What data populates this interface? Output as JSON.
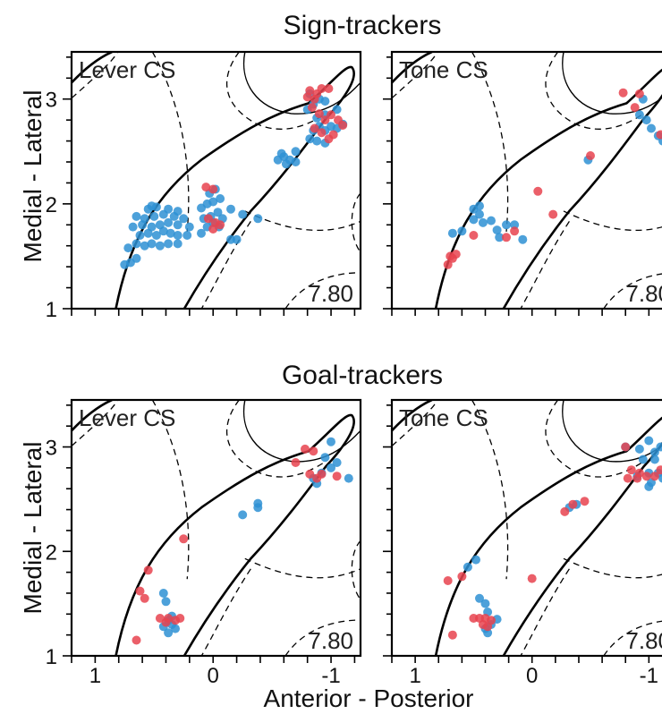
{
  "colors": {
    "blue": "#2E90D4",
    "red": "#E8434F"
  },
  "rows": [
    {
      "title": "Sign-trackers"
    },
    {
      "title": "Goal-trackers"
    }
  ],
  "ylabel": "Medial - Lateral",
  "xlabel": "Anterior - Posterior",
  "y_ticks": [
    "1",
    "2",
    "3"
  ],
  "x_ticks": [
    "1",
    "0",
    "-1"
  ],
  "chart_data": [
    {
      "type": "scatter",
      "title": "Sign-trackers",
      "panel": "Lever CS",
      "coordinate": "7.80",
      "xlim": [
        1.2,
        -1.25
      ],
      "ylim": [
        1,
        3.45
      ],
      "series": [
        {
          "color": "#2E90D4",
          "points": [
            [
              0.75,
              1.42
            ],
            [
              0.7,
              1.44
            ],
            [
              0.65,
              1.48
            ],
            [
              0.72,
              1.58
            ],
            [
              0.65,
              1.62
            ],
            [
              0.58,
              1.6
            ],
            [
              0.52,
              1.62
            ],
            [
              0.45,
              1.6
            ],
            [
              0.38,
              1.62
            ],
            [
              0.3,
              1.62
            ],
            [
              0.62,
              1.7
            ],
            [
              0.55,
              1.72
            ],
            [
              0.48,
              1.7
            ],
            [
              0.42,
              1.74
            ],
            [
              0.36,
              1.72
            ],
            [
              0.3,
              1.7
            ],
            [
              0.22,
              1.7
            ],
            [
              0.68,
              1.78
            ],
            [
              0.6,
              1.8
            ],
            [
              0.52,
              1.78
            ],
            [
              0.45,
              1.8
            ],
            [
              0.38,
              1.82
            ],
            [
              0.3,
              1.8
            ],
            [
              0.2,
              1.78
            ],
            [
              0.65,
              1.88
            ],
            [
              0.58,
              1.86
            ],
            [
              0.5,
              1.88
            ],
            [
              0.42,
              1.9
            ],
            [
              0.33,
              1.88
            ],
            [
              0.25,
              1.86
            ],
            [
              0.55,
              1.95
            ],
            [
              0.48,
              1.97
            ],
            [
              0.38,
              1.95
            ],
            [
              0.3,
              1.93
            ],
            [
              0.52,
              1.98
            ],
            [
              0.1,
              1.72
            ],
            [
              0.05,
              1.78
            ],
            [
              0.0,
              1.82
            ],
            [
              -0.05,
              1.78
            ],
            [
              0.08,
              1.86
            ],
            [
              0.02,
              1.88
            ],
            [
              -0.04,
              1.92
            ],
            [
              0.1,
              1.96
            ],
            [
              0.05,
              2.0
            ],
            [
              0.0,
              2.02
            ],
            [
              -0.06,
              2.05
            ],
            [
              0.03,
              2.1
            ],
            [
              -0.02,
              2.14
            ],
            [
              -0.08,
              1.86
            ],
            [
              -0.15,
              1.95
            ],
            [
              -0.2,
              1.66
            ],
            [
              -0.15,
              1.66
            ],
            [
              -0.25,
              1.9
            ],
            [
              -0.38,
              1.86
            ],
            [
              -0.55,
              2.42
            ],
            [
              -0.6,
              2.45
            ],
            [
              -0.65,
              2.42
            ],
            [
              -0.7,
              2.4
            ],
            [
              -0.62,
              2.38
            ],
            [
              -0.58,
              2.48
            ],
            [
              -0.7,
              2.5
            ],
            [
              -0.82,
              2.62
            ],
            [
              -0.88,
              2.6
            ],
            [
              -0.95,
              2.58
            ],
            [
              -0.85,
              2.7
            ],
            [
              -0.9,
              2.74
            ],
            [
              -0.95,
              2.7
            ],
            [
              -1.0,
              2.74
            ],
            [
              -0.88,
              2.82
            ],
            [
              -0.95,
              2.85
            ],
            [
              -1.05,
              2.72
            ],
            [
              -0.8,
              2.9
            ],
            [
              -0.85,
              2.95
            ],
            [
              -0.9,
              3.0
            ],
            [
              -0.82,
              3.05
            ],
            [
              -0.95,
              2.98
            ],
            [
              -1.05,
              2.9
            ],
            [
              -1.1,
              2.76
            ]
          ]
        },
        {
          "color": "#E8434F",
          "points": [
            [
              0.06,
              2.16
            ],
            [
              0.0,
              2.14
            ],
            [
              0.04,
              1.86
            ],
            [
              -0.02,
              1.82
            ],
            [
              0.0,
              1.76
            ],
            [
              -0.06,
              1.8
            ],
            [
              -0.82,
              3.08
            ],
            [
              -0.88,
              3.05
            ],
            [
              -0.8,
              3.02
            ],
            [
              -0.86,
              3.0
            ],
            [
              -0.92,
              3.1
            ],
            [
              -0.98,
              3.1
            ],
            [
              -0.84,
              2.92
            ],
            [
              -0.9,
              2.86
            ],
            [
              -0.95,
              2.8
            ],
            [
              -1.0,
              2.85
            ],
            [
              -1.06,
              2.8
            ],
            [
              -0.86,
              2.72
            ],
            [
              -0.92,
              2.68
            ],
            [
              -0.98,
              2.62
            ],
            [
              -1.02,
              2.66
            ],
            [
              -1.1,
              2.75
            ]
          ]
        }
      ]
    },
    {
      "type": "scatter",
      "title": "Sign-trackers",
      "panel": "Tone CS",
      "coordinate": "7.80",
      "xlim": [
        1.2,
        -1.25
      ],
      "ylim": [
        1,
        3.45
      ],
      "series": [
        {
          "color": "#2E90D4",
          "points": [
            [
              0.68,
              1.72
            ],
            [
              0.6,
              1.74
            ],
            [
              0.5,
              1.85
            ],
            [
              0.45,
              1.9
            ],
            [
              0.42,
              1.82
            ],
            [
              0.35,
              1.84
            ],
            [
              0.3,
              1.75
            ],
            [
              0.28,
              1.68
            ],
            [
              0.22,
              1.8
            ],
            [
              0.15,
              1.8
            ],
            [
              0.08,
              1.66
            ],
            [
              0.5,
              1.95
            ],
            [
              0.45,
              1.98
            ],
            [
              -0.92,
              2.85
            ],
            [
              -0.98,
              2.8
            ],
            [
              -1.02,
              2.72
            ],
            [
              -1.08,
              2.65
            ],
            [
              -1.12,
              2.6
            ],
            [
              -0.95,
              3.0
            ],
            [
              -0.48,
              2.42
            ]
          ]
        },
        {
          "color": "#E8434F",
          "points": [
            [
              0.72,
              1.42
            ],
            [
              0.68,
              1.48
            ],
            [
              0.65,
              1.52
            ],
            [
              0.7,
              1.5
            ],
            [
              0.5,
              1.7
            ],
            [
              0.22,
              1.68
            ],
            [
              0.15,
              1.74
            ],
            [
              -0.05,
              2.12
            ],
            [
              -0.18,
              1.9
            ],
            [
              -0.5,
              2.46
            ],
            [
              -0.78,
              3.06
            ],
            [
              -0.88,
              2.92
            ],
            [
              -0.92,
              3.05
            ],
            [
              -1.1,
              2.66
            ]
          ]
        }
      ]
    },
    {
      "type": "scatter",
      "title": "Goal-trackers",
      "panel": "Lever CS",
      "coordinate": "7.80",
      "xlim": [
        1.2,
        -1.25
      ],
      "ylim": [
        1,
        3.45
      ],
      "series": [
        {
          "color": "#2E90D4",
          "points": [
            [
              0.42,
              1.6
            ],
            [
              0.4,
              1.52
            ],
            [
              0.38,
              1.34
            ],
            [
              0.42,
              1.28
            ],
            [
              0.35,
              1.38
            ],
            [
              0.38,
              1.22
            ],
            [
              0.32,
              1.26
            ],
            [
              0.35,
              1.3
            ],
            [
              -0.25,
              2.35
            ],
            [
              -0.38,
              2.46
            ],
            [
              -0.38,
              2.42
            ],
            [
              -0.85,
              2.7
            ],
            [
              -0.92,
              2.75
            ],
            [
              -1.0,
              2.8
            ],
            [
              -1.05,
              2.85
            ],
            [
              -0.95,
              2.9
            ],
            [
              -1.15,
              2.7
            ],
            [
              -0.88,
              2.65
            ],
            [
              -1.0,
              3.05
            ]
          ]
        },
        {
          "color": "#E8434F",
          "points": [
            [
              0.55,
              1.82
            ],
            [
              0.62,
              1.62
            ],
            [
              0.58,
              1.55
            ],
            [
              0.65,
              1.15
            ],
            [
              0.45,
              1.36
            ],
            [
              0.38,
              1.36
            ],
            [
              0.32,
              1.34
            ],
            [
              0.28,
              1.36
            ],
            [
              0.4,
              1.32
            ],
            [
              0.25,
              2.12
            ],
            [
              -0.7,
              2.85
            ],
            [
              -0.78,
              2.98
            ],
            [
              -0.85,
              2.96
            ],
            [
              -0.82,
              2.74
            ],
            [
              -0.88,
              2.7
            ],
            [
              -0.92,
              2.74
            ],
            [
              -1.05,
              2.72
            ]
          ]
        }
      ]
    },
    {
      "type": "scatter",
      "title": "Goal-trackers",
      "panel": "Tone CS",
      "coordinate": "7.80",
      "xlim": [
        1.2,
        -1.25
      ],
      "ylim": [
        1,
        3.45
      ],
      "series": [
        {
          "color": "#2E90D4",
          "points": [
            [
              0.55,
              1.85
            ],
            [
              0.48,
              1.92
            ],
            [
              0.45,
              1.55
            ],
            [
              0.4,
              1.5
            ],
            [
              0.38,
              1.42
            ],
            [
              0.4,
              1.26
            ],
            [
              0.35,
              1.3
            ],
            [
              0.38,
              1.22
            ],
            [
              0.3,
              1.35
            ],
            [
              -0.32,
              2.42
            ],
            [
              -0.38,
              2.45
            ],
            [
              -0.8,
              3.0
            ],
            [
              -0.92,
              2.98
            ],
            [
              -1.0,
              3.06
            ],
            [
              -1.05,
              2.95
            ],
            [
              -1.1,
              3.0
            ],
            [
              -0.95,
              2.88
            ],
            [
              -1.05,
              2.88
            ],
            [
              -0.9,
              2.72
            ],
            [
              -1.0,
              2.75
            ],
            [
              -1.08,
              2.75
            ],
            [
              -1.12,
              2.7
            ],
            [
              -1.02,
              2.66
            ],
            [
              -1.0,
              2.62
            ]
          ]
        },
        {
          "color": "#E8434F",
          "points": [
            [
              0.68,
              1.2
            ],
            [
              0.5,
              1.36
            ],
            [
              0.45,
              1.36
            ],
            [
              0.4,
              1.36
            ],
            [
              0.35,
              1.34
            ],
            [
              0.42,
              1.3
            ],
            [
              0.38,
              1.28
            ],
            [
              0.72,
              1.72
            ],
            [
              0.6,
              1.76
            ],
            [
              0.0,
              1.74
            ],
            [
              -0.28,
              2.38
            ],
            [
              -0.35,
              2.45
            ],
            [
              -0.45,
              2.48
            ],
            [
              -0.8,
              3.0
            ],
            [
              -0.85,
              2.78
            ],
            [
              -0.92,
              2.75
            ],
            [
              -0.98,
              2.72
            ],
            [
              -1.05,
              2.72
            ],
            [
              -1.1,
              2.78
            ],
            [
              -1.18,
              2.75
            ],
            [
              -0.82,
              2.7
            ],
            [
              -0.9,
              2.7
            ]
          ]
        }
      ]
    }
  ]
}
